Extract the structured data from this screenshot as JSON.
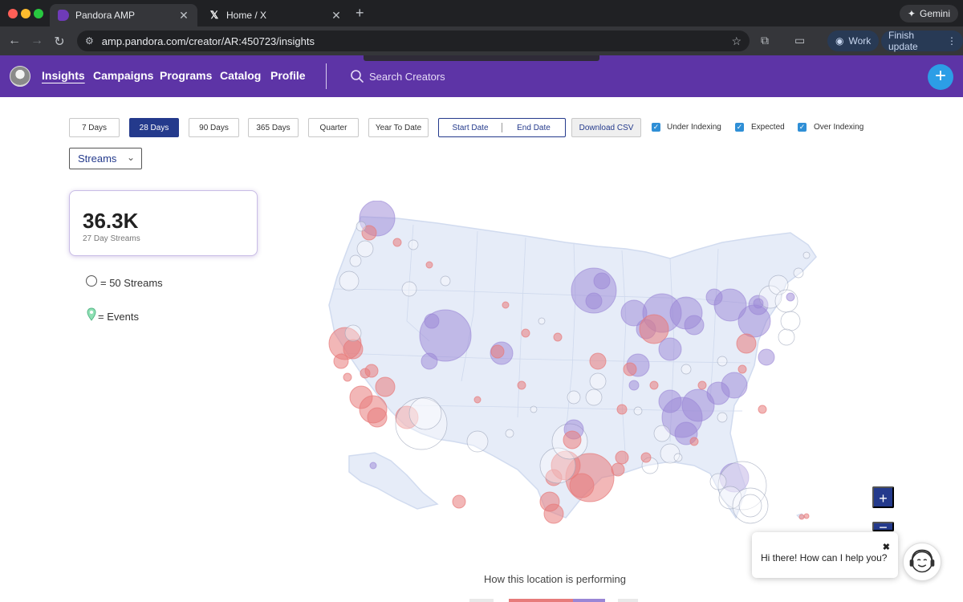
{
  "browser": {
    "tabs": [
      {
        "title": "Pandora AMP",
        "active": true
      },
      {
        "title": "Home / X",
        "active": false
      }
    ],
    "gemini_label": "Gemini",
    "url": "amp.pandora.com/creator/AR:450723/insights",
    "profile_label": "Work",
    "update_label": "Finish update"
  },
  "header": {
    "nav": [
      "Insights",
      "Campaigns",
      "Programs",
      "Catalog",
      "Profile"
    ],
    "active_nav": "Insights",
    "search_placeholder": "Search Creators",
    "accent_color": "#5d34a6"
  },
  "filters": {
    "ranges": [
      "7 Days",
      "28 Days",
      "90 Days",
      "365 Days",
      "Quarter",
      "Year To Date"
    ],
    "selected_range": "28 Days",
    "start_date": "Start Date",
    "end_date": "End Date",
    "download": "Download CSV",
    "checkboxes": [
      {
        "label": "Under Indexing",
        "checked": true
      },
      {
        "label": "Expected",
        "checked": true
      },
      {
        "label": "Over Indexing",
        "checked": true
      }
    ],
    "metric": "Streams"
  },
  "kpi": {
    "value": "36.3K",
    "label": "27 Day Streams"
  },
  "legend": {
    "circle": "= 50 Streams",
    "pin": "= Events"
  },
  "map": {
    "over_color": "#e77b7b",
    "under_color": "#9a86d6",
    "expected_color": "#ffffff"
  },
  "chat": {
    "message": "Hi there! How can I help you?"
  },
  "performance": {
    "heading": "How this location is performing"
  }
}
